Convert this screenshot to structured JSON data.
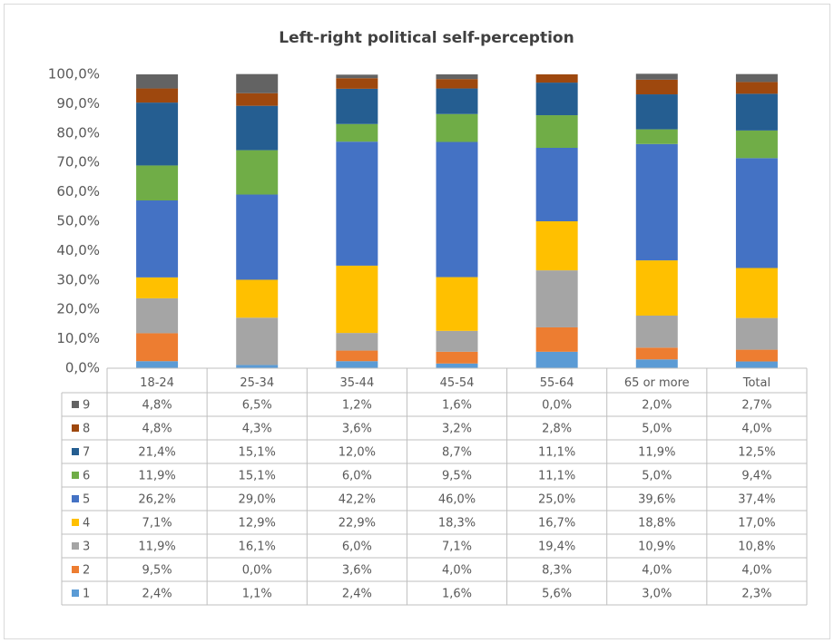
{
  "chart_data": {
    "type": "stacked_bar",
    "title": "Left-right political self-perception",
    "categories": [
      "18-24",
      "25-34",
      "35-44",
      "45-54",
      "55-64",
      "65 or more",
      "Total"
    ],
    "ylim": [
      0,
      100
    ],
    "yticks": [
      {
        "value": 0,
        "label": "0,0%"
      },
      {
        "value": 10,
        "label": "10,0%"
      },
      {
        "value": 20,
        "label": "20,0%"
      },
      {
        "value": 30,
        "label": "30,0%"
      },
      {
        "value": 40,
        "label": "40,0%"
      },
      {
        "value": 50,
        "label": "50,0%"
      },
      {
        "value": 60,
        "label": "60,0%"
      },
      {
        "value": 70,
        "label": "70,0%"
      },
      {
        "value": 80,
        "label": "80,0%"
      },
      {
        "value": 90,
        "label": "90,0%"
      },
      {
        "value": 100,
        "label": "100,0%"
      }
    ],
    "series": [
      {
        "name": "1",
        "color": "#5b9bd5",
        "values": [
          2.4,
          1.1,
          2.4,
          1.6,
          5.6,
          3.0,
          2.3
        ],
        "value_labels": [
          "2,4%",
          "1,1%",
          "2,4%",
          "1,6%",
          "5,6%",
          "3,0%",
          "2,3%"
        ]
      },
      {
        "name": "2",
        "color": "#ed7d31",
        "values": [
          9.5,
          0.0,
          3.6,
          4.0,
          8.3,
          4.0,
          4.0
        ],
        "value_labels": [
          "9,5%",
          "0,0%",
          "3,6%",
          "4,0%",
          "8,3%",
          "4,0%",
          "4,0%"
        ]
      },
      {
        "name": "3",
        "color": "#a5a5a5",
        "values": [
          11.9,
          16.1,
          6.0,
          7.1,
          19.4,
          10.9,
          10.8
        ],
        "value_labels": [
          "11,9%",
          "16,1%",
          "6,0%",
          "7,1%",
          "19,4%",
          "10,9%",
          "10,8%"
        ]
      },
      {
        "name": "4",
        "color": "#ffc000",
        "values": [
          7.1,
          12.9,
          22.9,
          18.3,
          16.7,
          18.8,
          17.0
        ],
        "value_labels": [
          "7,1%",
          "12,9%",
          "22,9%",
          "18,3%",
          "16,7%",
          "18,8%",
          "17,0%"
        ]
      },
      {
        "name": "5",
        "color": "#4472c4",
        "values": [
          26.2,
          29.0,
          42.2,
          46.0,
          25.0,
          39.6,
          37.4
        ],
        "value_labels": [
          "26,2%",
          "29,0%",
          "42,2%",
          "46,0%",
          "25,0%",
          "39,6%",
          "37,4%"
        ]
      },
      {
        "name": "6",
        "color": "#70ad47",
        "values": [
          11.9,
          15.1,
          6.0,
          9.5,
          11.1,
          5.0,
          9.4
        ],
        "value_labels": [
          "11,9%",
          "15,1%",
          "6,0%",
          "9,5%",
          "11,1%",
          "5,0%",
          "9,4%"
        ]
      },
      {
        "name": "7",
        "color": "#255e91",
        "values": [
          21.4,
          15.1,
          12.0,
          8.7,
          11.1,
          11.9,
          12.5
        ],
        "value_labels": [
          "21,4%",
          "15,1%",
          "12,0%",
          "8,7%",
          "11,1%",
          "11,9%",
          "12,5%"
        ]
      },
      {
        "name": "8",
        "color": "#9e480e",
        "values": [
          4.8,
          4.3,
          3.6,
          3.2,
          2.8,
          5.0,
          4.0
        ],
        "value_labels": [
          "4,8%",
          "4,3%",
          "3,6%",
          "3,2%",
          "2,8%",
          "5,0%",
          "4,0%"
        ]
      },
      {
        "name": "9",
        "color": "#636363",
        "values": [
          4.8,
          6.5,
          1.2,
          1.6,
          0.0,
          2.0,
          2.7
        ],
        "value_labels": [
          "4,8%",
          "6,5%",
          "1,2%",
          "1,6%",
          "0,0%",
          "2,0%",
          "2,7%"
        ]
      }
    ]
  }
}
